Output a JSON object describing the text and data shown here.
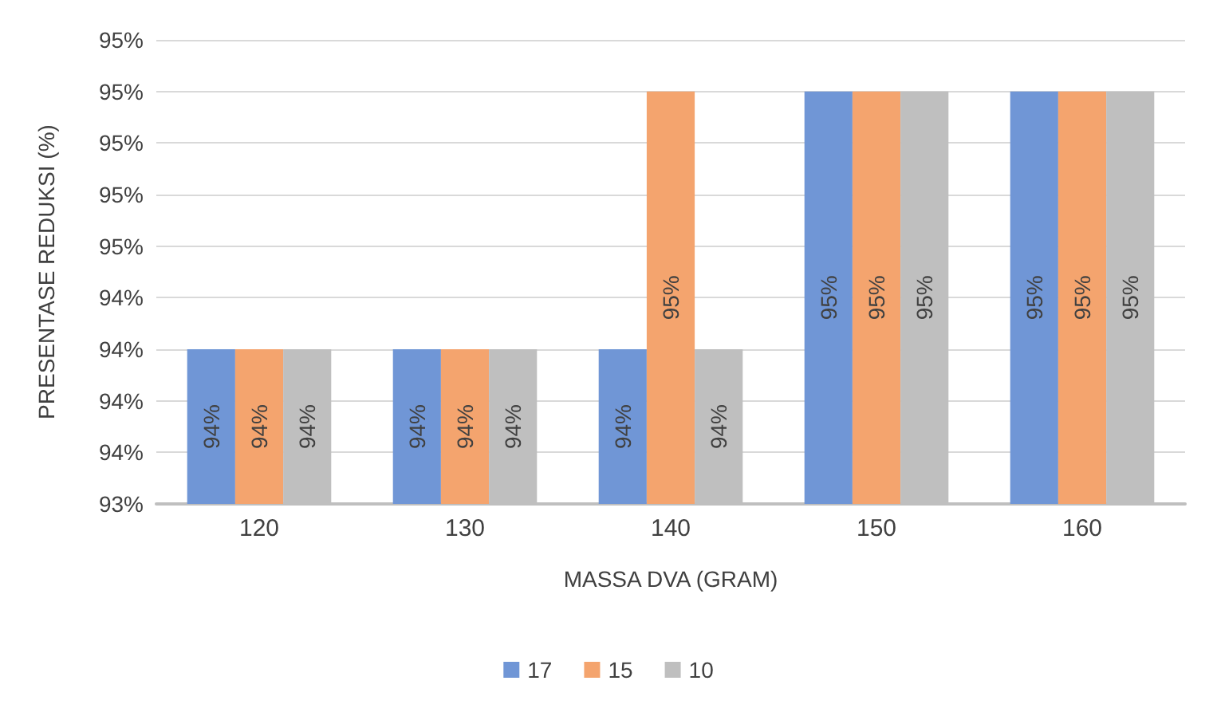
{
  "chart_data": {
    "type": "bar",
    "xlabel": "MASSA DVA (GRAM)",
    "ylabel": "PRESENTASE REDUKSI (%)",
    "categories": [
      "120",
      "130",
      "140",
      "150",
      "160"
    ],
    "series": [
      {
        "name": "17",
        "color": "#7096d6",
        "values": [
          94.09,
          94.09,
          94.09,
          95.24,
          95.24
        ],
        "value_labels": [
          "94%",
          "94%",
          "94%",
          "95%",
          "95%"
        ]
      },
      {
        "name": "15",
        "color": "#f4a46e",
        "values": [
          94.09,
          94.09,
          95.24,
          95.24,
          95.24
        ],
        "value_labels": [
          "94%",
          "94%",
          "95%",
          "95%",
          "95%"
        ]
      },
      {
        "name": "10",
        "color": "#bfbfbf",
        "values": [
          94.09,
          94.09,
          94.09,
          95.24,
          95.24
        ],
        "value_labels": [
          "94%",
          "94%",
          "94%",
          "95%",
          "95%"
        ]
      }
    ],
    "ylim": [
      93.4,
      95.47
    ],
    "yticks": [
      {
        "value": 93.4,
        "label": "93%"
      },
      {
        "value": 93.63,
        "label": "94%"
      },
      {
        "value": 93.86,
        "label": "94%"
      },
      {
        "value": 94.09,
        "label": "94%"
      },
      {
        "value": 94.32,
        "label": "94%"
      },
      {
        "value": 94.55,
        "label": "95%"
      },
      {
        "value": 94.78,
        "label": "95%"
      },
      {
        "value": 95.01,
        "label": "95%"
      },
      {
        "value": 95.24,
        "label": "95%"
      },
      {
        "value": 95.47,
        "label": "95%"
      }
    ],
    "grid": "y",
    "legend": "bottom"
  }
}
